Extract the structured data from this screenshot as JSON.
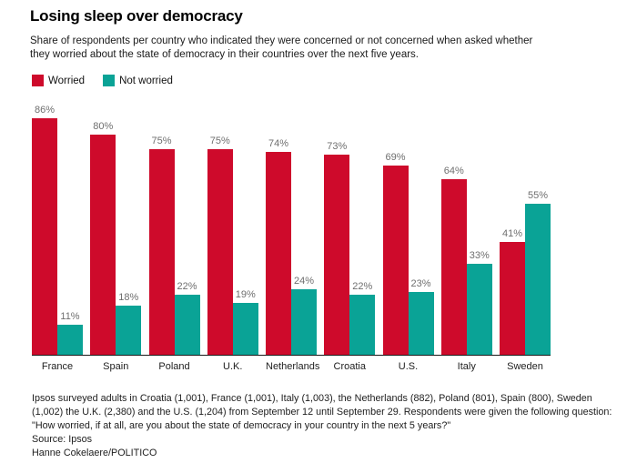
{
  "page": {
    "title": "Losing sleep over democracy",
    "subtitle_lines": [
      "Share of respondents per country who indicated they were concerned or not concerned when asked whether",
      "they worried about the state of democracy in their countries over the next five years."
    ]
  },
  "legend": [
    {
      "label": "Worried",
      "color": "#ce0a2b"
    },
    {
      "label": "Not worried",
      "color": "#0aa396"
    }
  ],
  "chart_data": {
    "type": "bar",
    "title": "Losing sleep over democracy",
    "categories": [
      "France",
      "Spain",
      "Poland",
      "U.K.",
      "Netherlands",
      "Croatia",
      "U.S.",
      "Italy",
      "Sweden"
    ],
    "series": [
      {
        "name": "Worried",
        "color": "#ce0a2b",
        "values": [
          86,
          80,
          75,
          75,
          74,
          73,
          69,
          64,
          41
        ]
      },
      {
        "name": "Not worried",
        "color": "#0aa396",
        "values": [
          11,
          18,
          22,
          19,
          24,
          22,
          23,
          33,
          55
        ]
      }
    ],
    "value_suffix": "%",
    "xlabel": "",
    "ylabel": "",
    "ylim": [
      0,
      100
    ],
    "grid": false,
    "legend_position": "top-left",
    "value_labels": true
  },
  "footer": {
    "note_lines": [
      "Ipsos surveyed adults in Croatia (1,001), France (1,001), Italy (1,003), the Netherlands (882), Poland (801), Spain (800), Sweden",
      "(1,002) the U.K. (2,380) and the U.S. (1,204) from September 12 until September 29. Respondents were given the following question:",
      "\"How worried, if at all, are you about the state of democracy in your country in the next 5 years?\""
    ],
    "source": "Source: Ipsos",
    "credit": "Hanne Cokelaere/POLITICO"
  }
}
